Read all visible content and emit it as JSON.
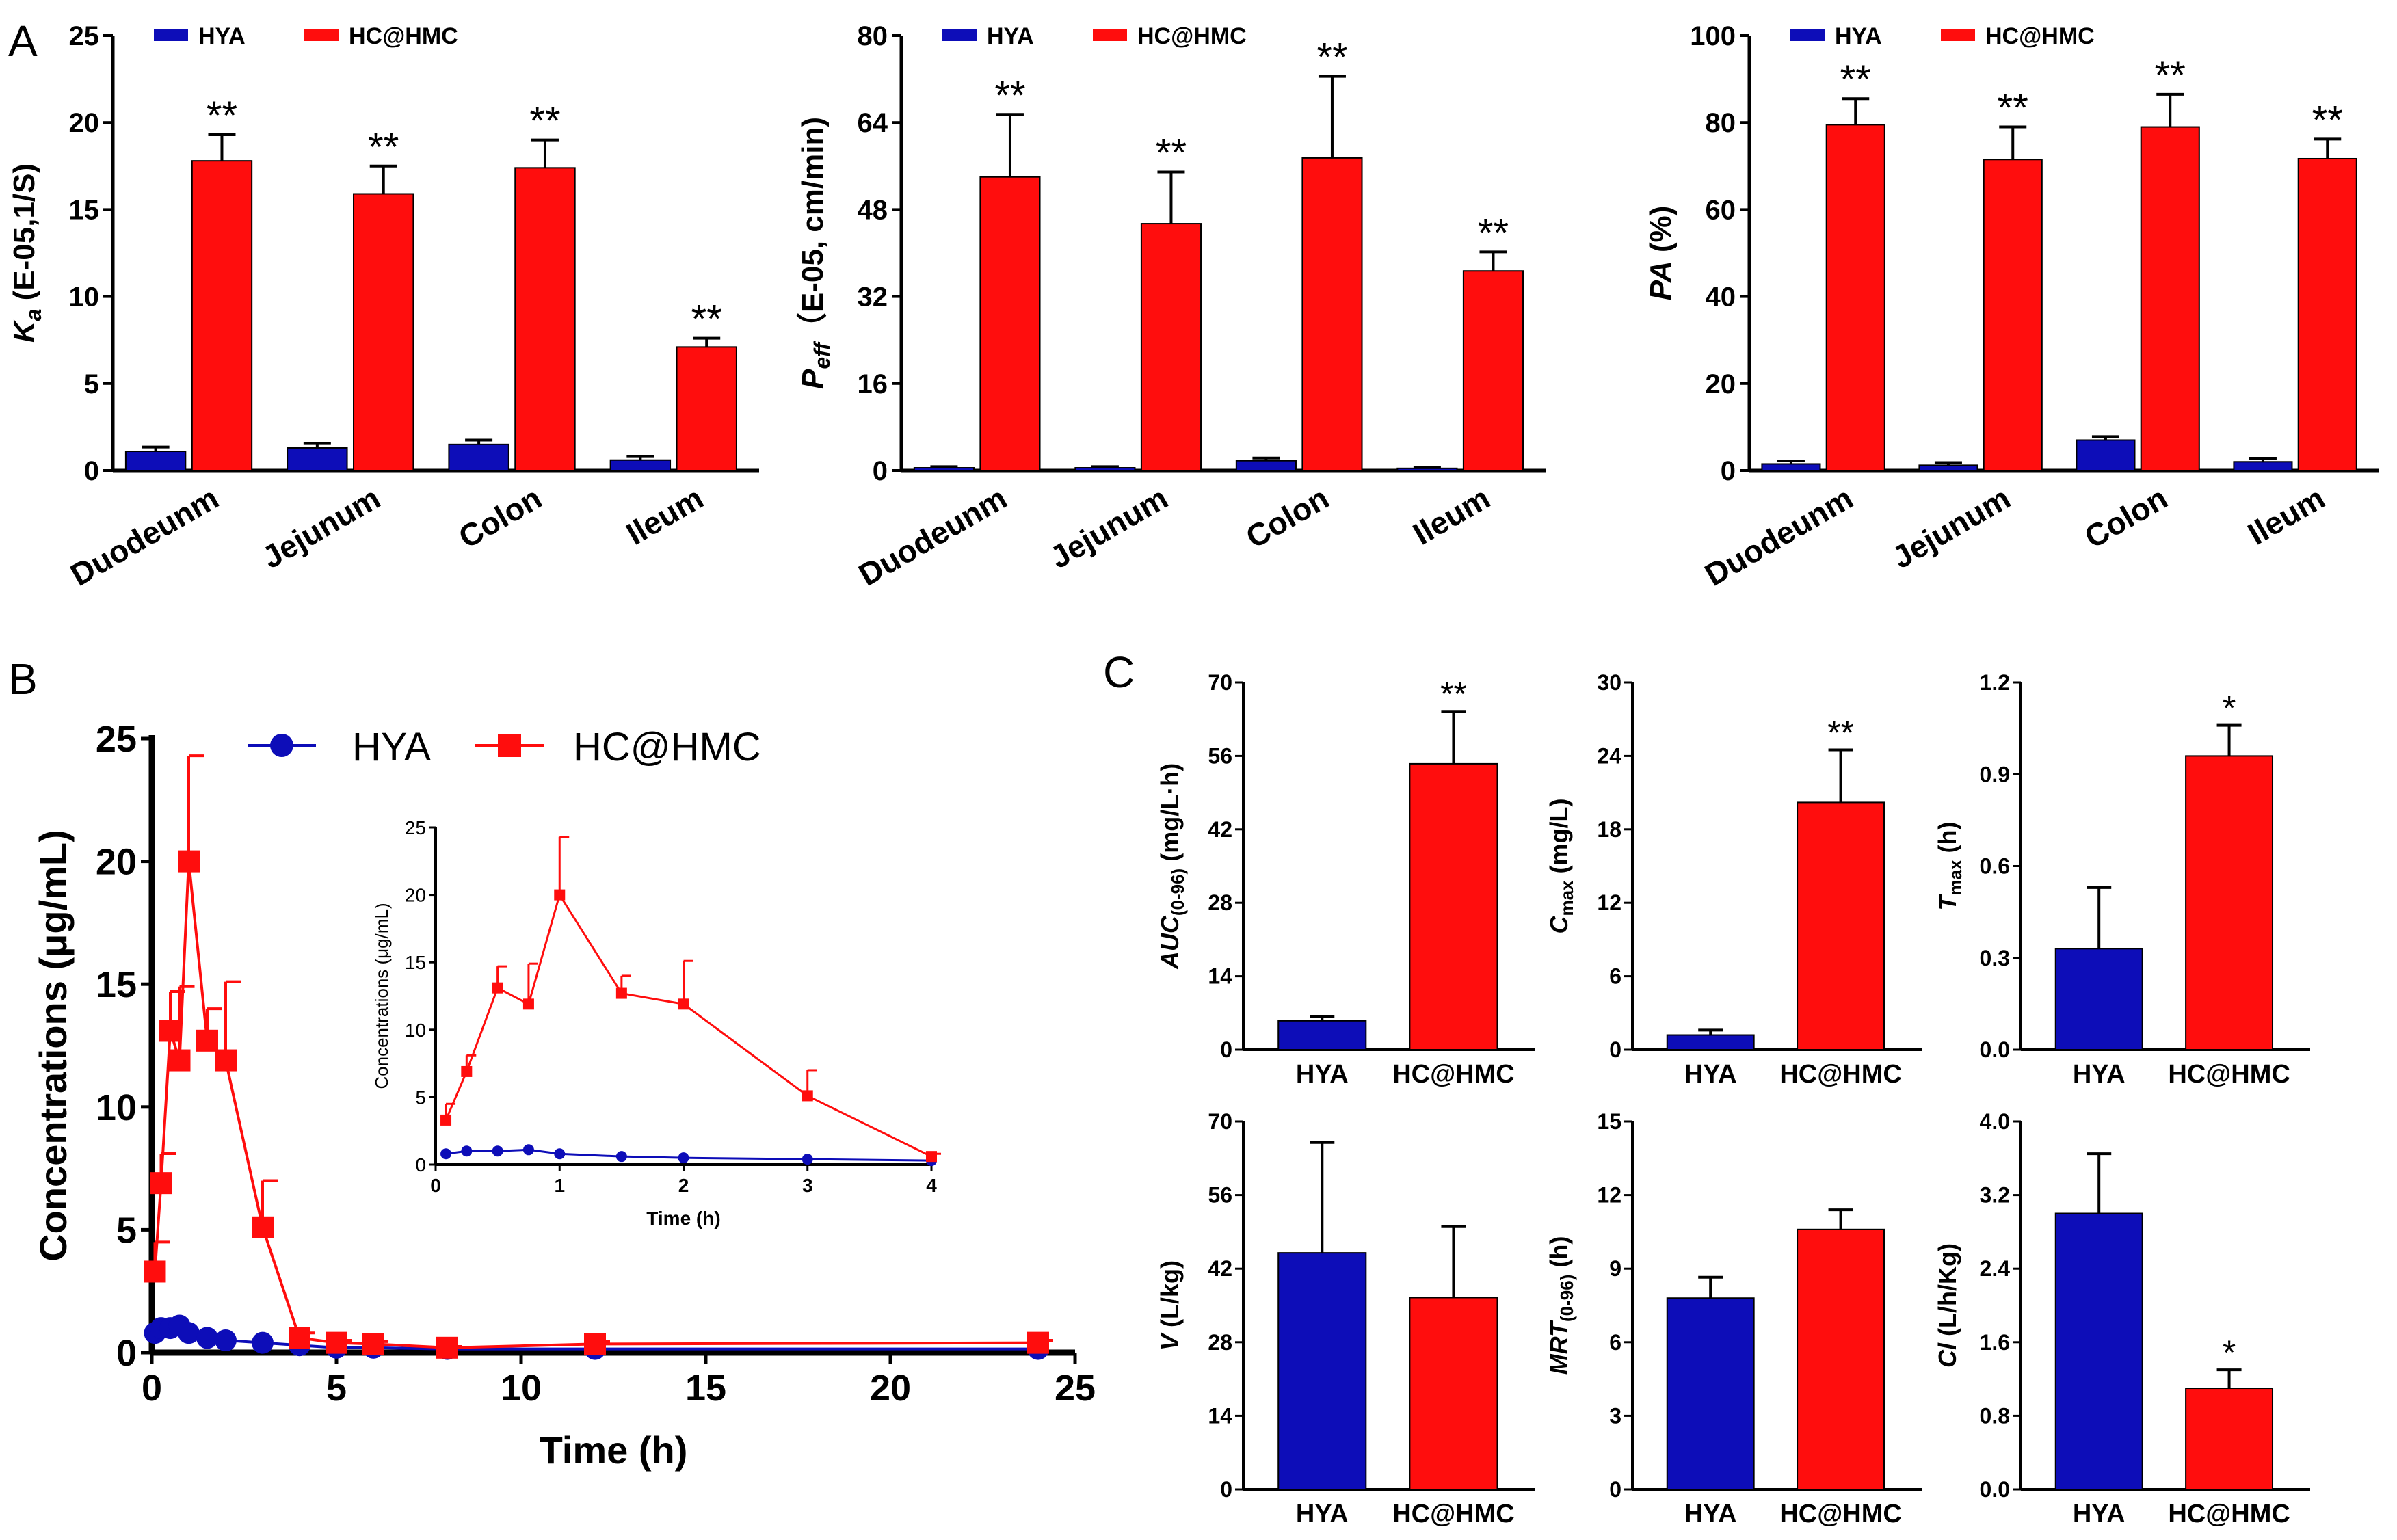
{
  "colors": {
    "hya": "#0d0db8",
    "hcm": "#ff0d0d",
    "axis": "#000000"
  },
  "panel_labels": [
    "A",
    "B",
    "C"
  ],
  "significance": {
    "double": "**",
    "single": "*"
  },
  "chart_data": [
    {
      "id": "A1",
      "type": "bar",
      "ylabel_main": "K",
      "ylabel_sub": "a",
      "ylabel_rest": " (E-05,1/S)",
      "ylim": [
        0,
        25
      ],
      "yticks": [
        0,
        5,
        10,
        15,
        20,
        25
      ],
      "categories": [
        "Duodeunm",
        "Jejunum",
        "Colon",
        "Ileum"
      ],
      "series": [
        {
          "name": "HYA",
          "values": [
            1.1,
            1.3,
            1.5,
            0.6
          ],
          "errors": [
            0.25,
            0.25,
            0.25,
            0.2
          ]
        },
        {
          "name": "HC@HMC",
          "values": [
            17.8,
            15.9,
            17.4,
            7.1
          ],
          "errors": [
            1.5,
            1.6,
            1.6,
            0.5
          ]
        }
      ],
      "sig": [
        "**",
        "**",
        "**",
        "**"
      ]
    },
    {
      "id": "A2",
      "type": "bar",
      "ylabel_main": "P",
      "ylabel_sub": "eff",
      "ylabel_rest": "（E-05, cm/min)",
      "ylim": [
        0,
        80
      ],
      "yticks": [
        0,
        16,
        32,
        48,
        64,
        80
      ],
      "categories": [
        "Duodeunm",
        "Jejunum",
        "Colon",
        "Ileum"
      ],
      "series": [
        {
          "name": "HYA",
          "values": [
            0.5,
            0.5,
            1.8,
            0.4
          ],
          "errors": [
            0.2,
            0.2,
            0.5,
            0.2
          ]
        },
        {
          "name": "HC@HMC",
          "values": [
            54,
            45.4,
            57.5,
            36.7
          ],
          "errors": [
            11.5,
            9.5,
            15,
            3.5
          ]
        }
      ],
      "sig": [
        "**",
        "**",
        "**",
        "**"
      ]
    },
    {
      "id": "A3",
      "type": "bar",
      "ylabel_main": "PA",
      "ylabel_sub": "",
      "ylabel_rest": " (%)",
      "ylim": [
        0,
        100
      ],
      "yticks": [
        0,
        20,
        40,
        60,
        80,
        100
      ],
      "categories": [
        "Duodeunm",
        "Jejunum",
        "Colon",
        "Ileum"
      ],
      "series": [
        {
          "name": "HYA",
          "values": [
            1.5,
            1.2,
            7,
            2
          ],
          "errors": [
            0.7,
            0.6,
            0.8,
            0.7
          ]
        },
        {
          "name": "HC@HMC",
          "values": [
            79.5,
            71.5,
            79,
            71.7
          ],
          "errors": [
            6,
            7.5,
            7.5,
            4.5
          ]
        }
      ],
      "sig": [
        "**",
        "**",
        "**",
        "**"
      ]
    },
    {
      "id": "B",
      "type": "line",
      "xlabel": "Time (h)",
      "ylabel": "Concentrations (μg/mL)",
      "xlim": [
        0,
        25
      ],
      "ylim": [
        0,
        25
      ],
      "xticks": [
        0,
        5,
        10,
        15,
        20,
        25
      ],
      "yticks": [
        0,
        5,
        10,
        15,
        20,
        25
      ],
      "series": [
        {
          "name": "HYA",
          "marker": "circle",
          "x": [
            0.083,
            0.25,
            0.5,
            0.75,
            1,
            1.5,
            2,
            3,
            4,
            5,
            6,
            8,
            12,
            24
          ],
          "y": [
            0.8,
            1.0,
            1.0,
            1.1,
            0.8,
            0.6,
            0.5,
            0.4,
            0.3,
            0.2,
            0.2,
            0.15,
            0.15,
            0.15
          ],
          "err": [
            0.1,
            0.15,
            0.15,
            0.2,
            0.1,
            0.1,
            0.1,
            0.1,
            0.05,
            0.05,
            0.05,
            0.05,
            0.05,
            0.05
          ]
        },
        {
          "name": "HC@HMC",
          "marker": "square",
          "x": [
            0.083,
            0.25,
            0.5,
            0.75,
            1,
            1.5,
            2,
            3,
            4,
            5,
            6,
            8,
            12,
            24
          ],
          "y": [
            3.3,
            6.9,
            13.1,
            11.9,
            20.0,
            12.7,
            11.9,
            5.1,
            0.6,
            0.4,
            0.35,
            0.2,
            0.35,
            0.4
          ],
          "err": [
            1.2,
            1.2,
            1.6,
            3.0,
            4.3,
            1.3,
            3.2,
            1.9,
            0.2,
            0.1,
            0.1,
            0.05,
            0.1,
            0.1
          ]
        }
      ],
      "inset": {
        "xlabel": "Time (h)",
        "ylabel": "Concentrations (μg/mL)",
        "xlim": [
          0,
          4
        ],
        "ylim": [
          0,
          25
        ],
        "xticks": [
          0,
          1,
          2,
          3,
          4
        ],
        "yticks": [
          0,
          5,
          10,
          15,
          20,
          25
        ]
      }
    },
    {
      "id": "C1",
      "type": "bar",
      "ylabel_main": "AUC",
      "ylabel_sub": "(0-96)",
      "ylabel_rest": " (mg/L·h)",
      "ylim": [
        0,
        70
      ],
      "yticks": [
        0,
        14,
        28,
        42,
        56,
        70
      ],
      "tick_decimals": 0,
      "categories": [
        "HYA",
        "HC@HMC"
      ],
      "values": [
        5.5,
        54.5
      ],
      "errors": [
        0.8,
        10
      ],
      "sig": [
        "",
        "**"
      ]
    },
    {
      "id": "C2",
      "type": "bar",
      "ylabel_main": "C",
      "ylabel_sub": "max",
      "ylabel_rest": " (mg/L)",
      "ylim": [
        0,
        30
      ],
      "yticks": [
        0,
        6,
        12,
        18,
        24,
        30
      ],
      "tick_decimals": 0,
      "categories": [
        "HYA",
        "HC@HMC"
      ],
      "values": [
        1.2,
        20.2
      ],
      "errors": [
        0.4,
        4.3
      ],
      "sig": [
        "",
        "**"
      ]
    },
    {
      "id": "C3",
      "type": "bar",
      "ylabel_main": "T",
      "ylabel_sub": "max",
      "ylabel_rest": " (h)",
      "ylim": [
        0,
        1.2
      ],
      "yticks": [
        0,
        0.3,
        0.6,
        0.9,
        1.2
      ],
      "tick_decimals": 1,
      "categories": [
        "HYA",
        "HC@HMC"
      ],
      "values": [
        0.33,
        0.96
      ],
      "errors": [
        0.2,
        0.1
      ],
      "sig": [
        "",
        "*"
      ]
    },
    {
      "id": "C4",
      "type": "bar",
      "ylabel_main": "V",
      "ylabel_sub": "",
      "ylabel_rest": " (L/kg)",
      "ylim": [
        0,
        70
      ],
      "yticks": [
        0,
        14,
        28,
        42,
        56,
        70
      ],
      "tick_decimals": 0,
      "categories": [
        "HYA",
        "HC@HMC"
      ],
      "values": [
        45,
        36.5
      ],
      "errors": [
        21,
        13.5
      ],
      "sig": [
        "",
        ""
      ]
    },
    {
      "id": "C5",
      "type": "bar",
      "ylabel_main": "MRT",
      "ylabel_sub": "(0-96)",
      "ylabel_rest": " (h)",
      "ylim": [
        0,
        15
      ],
      "yticks": [
        0,
        3,
        6,
        9,
        12,
        15
      ],
      "tick_decimals": 0,
      "categories": [
        "HYA",
        "HC@HMC"
      ],
      "values": [
        7.8,
        10.6
      ],
      "errors": [
        0.85,
        0.8
      ],
      "sig": [
        "",
        ""
      ]
    },
    {
      "id": "C6",
      "type": "bar",
      "ylabel_main": "Cl",
      "ylabel_sub": "",
      "ylabel_rest": " (L/h/Kg)",
      "ylim": [
        0,
        4
      ],
      "yticks": [
        0,
        0.8,
        1.6,
        2.4,
        3.2,
        4.0
      ],
      "tick_decimals": 1,
      "categories": [
        "HYA",
        "HC@HMC"
      ],
      "values": [
        3.0,
        1.1
      ],
      "errors": [
        0.65,
        0.2
      ],
      "sig": [
        "",
        "*"
      ]
    }
  ]
}
